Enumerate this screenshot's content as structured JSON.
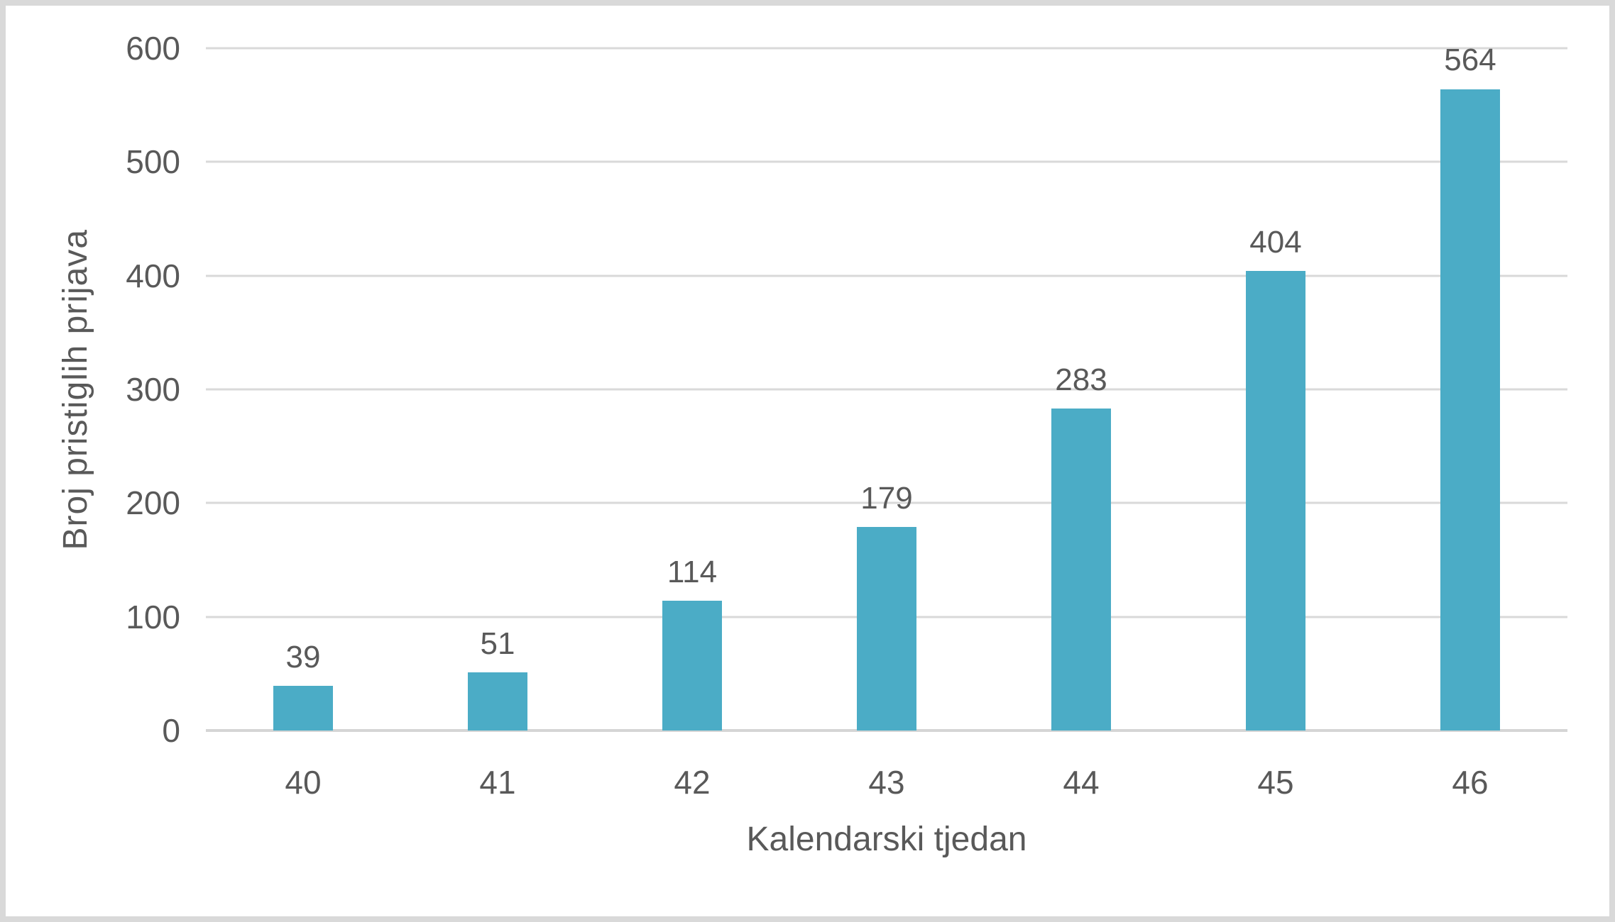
{
  "chart_data": {
    "type": "bar",
    "title": "",
    "xlabel": "Kalendarski tjedan",
    "ylabel": "Broj pristiglih prijava",
    "categories": [
      "40",
      "41",
      "42",
      "43",
      "44",
      "45",
      "46"
    ],
    "values": [
      39,
      51,
      114,
      179,
      283,
      404,
      564
    ],
    "data_labels": [
      "39",
      "51",
      "114",
      "179",
      "283",
      "404",
      "564"
    ],
    "ylim": [
      0,
      600
    ],
    "y_ticks": [
      "0",
      "100",
      "200",
      "300",
      "400",
      "500",
      "600"
    ],
    "grid": "horizontal-only",
    "legend": "none",
    "colors": {
      "bar": "#4bacc6",
      "gridline": "#d9d9d9",
      "axis_line": "#d5d5d5",
      "text": "#595959",
      "frame_border": "#d9d9d9",
      "background": "#ffffff"
    }
  }
}
